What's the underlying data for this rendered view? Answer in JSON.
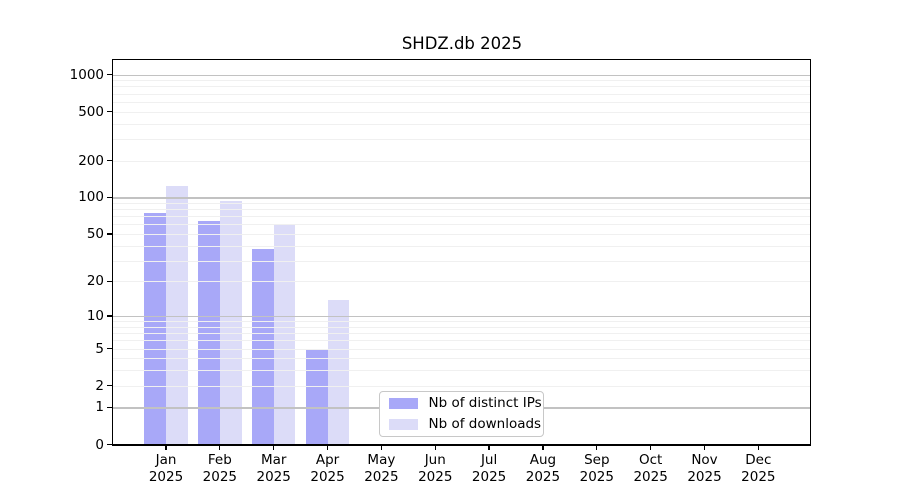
{
  "title": "SHDZ.db 2025",
  "chart_data": {
    "type": "bar",
    "title": "SHDZ.db 2025",
    "categories": [
      "Jan 2025",
      "Feb 2025",
      "Mar 2025",
      "Apr 2025",
      "May 2025",
      "Jun 2025",
      "Jul 2025",
      "Aug 2025",
      "Sep 2025",
      "Oct 2025",
      "Nov 2025",
      "Dec 2025"
    ],
    "x_months": [
      "Jan",
      "Feb",
      "Mar",
      "Apr",
      "May",
      "Jun",
      "Jul",
      "Aug",
      "Sep",
      "Oct",
      "Nov",
      "Dec"
    ],
    "x_year": "2025",
    "series": [
      {
        "name": "Nb of distinct IPs",
        "key": "distinct-ips",
        "color": "#a8a8f8",
        "values": [
          75,
          65,
          38,
          5,
          0,
          0,
          0,
          0,
          0,
          0,
          0,
          0
        ]
      },
      {
        "name": "Nb of downloads",
        "key": "downloads",
        "color": "#dcdcf8",
        "values": [
          125,
          95,
          60,
          14,
          0,
          0,
          0,
          0,
          0,
          0,
          0,
          0
        ]
      }
    ],
    "yscale": "log1p",
    "ylim": [
      0,
      1300
    ],
    "ytick_values": [
      0,
      1,
      2,
      5,
      10,
      20,
      50,
      100,
      200,
      500,
      1000
    ],
    "ytick_labels": [
      "0",
      "1",
      "2",
      "5",
      "10",
      "20",
      "50",
      "100",
      "200",
      "500",
      "1000"
    ],
    "grid": "both",
    "legend_position": "lower center"
  },
  "legend": {
    "items": [
      {
        "label": "Nb of distinct IPs",
        "color": "#a8a8f8"
      },
      {
        "label": "Nb of downloads",
        "color": "#dcdcf8"
      }
    ]
  },
  "colors": {
    "bar_distinct_ips": "#a8a8f8",
    "bar_downloads": "#dcdcf8",
    "grid_major": "#c2c2c2",
    "grid_minor": "#f0f0f0",
    "spine": "#000000",
    "background": "#ffffff",
    "text": "#000000"
  }
}
